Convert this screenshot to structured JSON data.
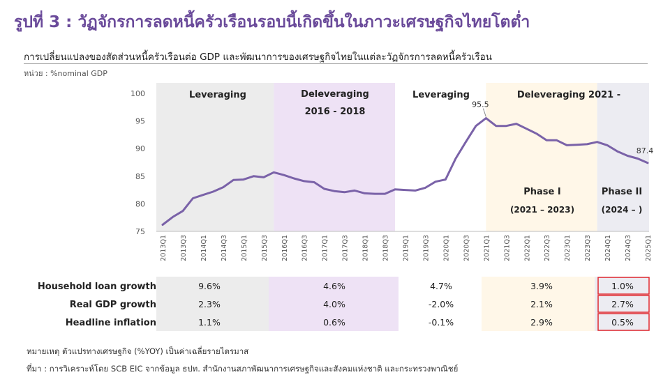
{
  "header": {
    "title": "รูปที่ 3 : วัฏจักรการลดหนี้ครัวเรือนรอบนี้เกิดขึ้นในภาวะเศรษฐกิจไทยโตต่ำ",
    "subtitle": "การเปลี่ยนแปลงของสัดส่วนหนี้ครัวเรือนต่อ  GDP  และพัฒนาการของเศรษฐกิจไทยในแต่ละวัฏจักรการลดหนี้ครัวเรือน",
    "unit": "หน่วย : %nominal GDP"
  },
  "colors": {
    "line": "#7a62a8",
    "leveraging_1": "#ececec",
    "deleveraging_1": "#eee2f5",
    "deleveraging_2": "#fff7e8",
    "phase_2": "#ececf2",
    "highlight_border": "#e0282e",
    "title": "#6a4a9a"
  },
  "chart_data": {
    "type": "line",
    "series": [
      {
        "values": [
          76.2,
          77.6,
          78.7,
          81.0,
          81.6,
          82.2,
          83.0,
          84.3,
          84.4,
          85.0,
          84.8,
          85.7,
          85.2,
          84.6,
          84.1,
          83.9,
          82.7,
          82.3,
          82.1,
          82.4,
          81.9,
          81.8,
          81.8,
          82.6,
          82.5,
          82.4,
          82.9,
          84.0,
          84.4,
          88.2,
          91.2,
          94.1,
          95.5,
          94.1,
          94.1,
          94.5,
          93.6,
          92.7,
          91.5,
          91.5,
          90.6,
          90.7,
          90.8,
          91.2,
          90.6,
          89.5,
          88.7,
          88.2,
          87.4
        ]
      }
    ],
    "x_tick_labels": [
      "2013Q1",
      "2013Q3",
      "2014Q1",
      "2014Q3",
      "2015Q1",
      "2015Q3",
      "2016Q1",
      "2016Q3",
      "2017Q1",
      "2017Q3",
      "2018Q1",
      "2018Q3",
      "2019Q1",
      "2019Q3",
      "2020Q1",
      "2020Q3",
      "2021Q1",
      "2021Q3",
      "2022Q1",
      "2022Q3",
      "2023Q1",
      "2023Q3",
      "2024Q1",
      "2024Q3",
      "2025Q1"
    ],
    "y_ticks": [
      75,
      80,
      85,
      90,
      95,
      100
    ],
    "ylim": [
      75,
      100
    ],
    "grid": false,
    "data_labels": [
      {
        "text": "95.5",
        "index": 32
      },
      {
        "text": "87.4",
        "index": 48
      }
    ],
    "periods": [
      {
        "lines": [
          "Leveraging"
        ],
        "start": 0,
        "end": 11,
        "color_key": "leveraging_1"
      },
      {
        "lines": [
          "Deleveraging",
          "2016 - 2018"
        ],
        "start": 11,
        "end": 23,
        "color_key": "deleveraging_1"
      },
      {
        "lines": [
          "Leveraging"
        ],
        "start": 23,
        "end": 32,
        "color_key": ""
      },
      {
        "lines": [
          "Deleveraging 2021 -"
        ],
        "start": 32,
        "end": 43,
        "color_key": "deleveraging_2"
      },
      {
        "lines": [],
        "start": 43,
        "end": 48,
        "color_key": "phase_2"
      }
    ],
    "phases": [
      {
        "lines": [
          "Phase I",
          "(2021 – 2023)"
        ]
      },
      {
        "lines": [
          "Phase II",
          "(2024 – )"
        ]
      }
    ]
  },
  "table": {
    "rows": [
      {
        "label": "Household loan growth",
        "values": [
          "9.6%",
          "4.6%",
          "4.7%",
          "3.9%",
          "1.0%"
        ]
      },
      {
        "label": "Real GDP growth",
        "values": [
          "2.3%",
          "4.0%",
          "-2.0%",
          "2.1%",
          "2.7%"
        ]
      },
      {
        "label": "Headline inflation",
        "values": [
          "1.1%",
          "0.6%",
          "-0.1%",
          "2.9%",
          "0.5%"
        ]
      }
    ]
  },
  "notes": {
    "remark": "หมายเหตุ ตัวแปรทางเศรษฐกิจ (%YOY) เป็นค่าเฉลี่ยรายไตรมาส",
    "source": "ที่มา : การวิเคราะห์โดย SCB EIC จากข้อมูล ธปท. สำนักงานสภาพัฒนาการเศรษฐกิจและสังคมแห่งชาติ  และกระทรวงพาณิชย์"
  }
}
